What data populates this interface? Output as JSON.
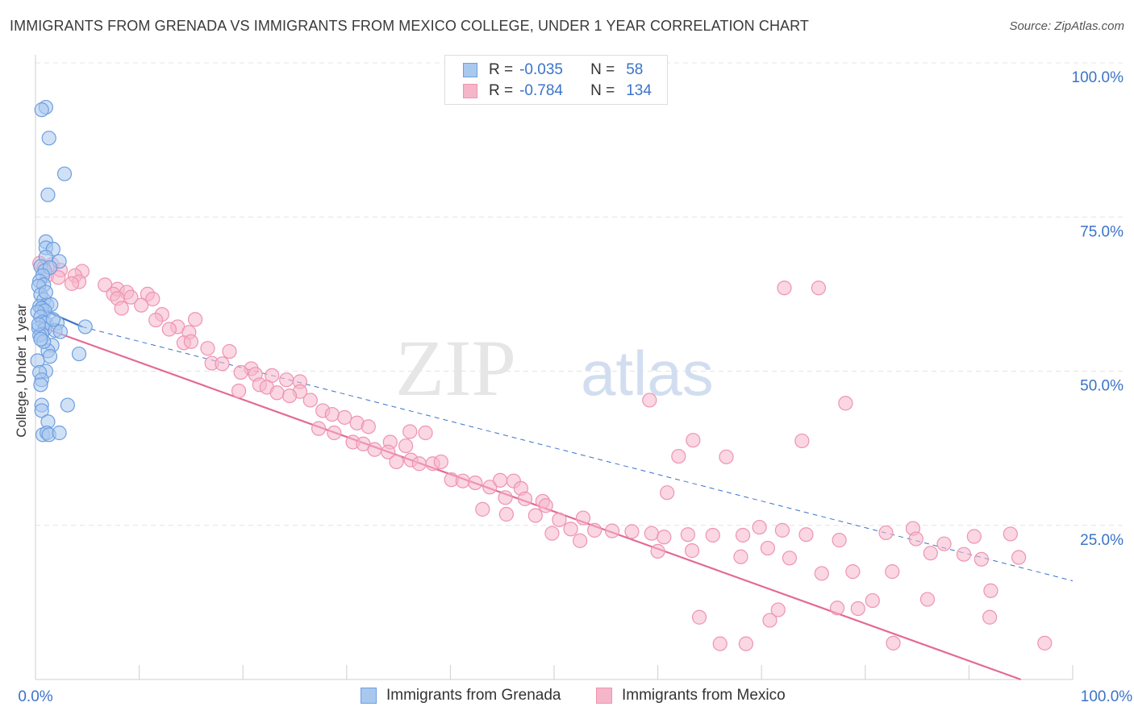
{
  "chart_data": {
    "type": "scatter",
    "title": "IMMIGRANTS FROM GRENADA VS IMMIGRANTS FROM MEXICO COLLEGE, UNDER 1 YEAR CORRELATION CHART",
    "source": "Source: ZipAtlas.com",
    "xlabel": "",
    "ylabel": "College, Under 1 year",
    "xlim": [
      0,
      100
    ],
    "ylim": [
      0,
      100
    ],
    "x_tick_labels": [
      "0.0%",
      "100.0%"
    ],
    "y_tick_values": [
      25,
      50,
      75,
      100
    ],
    "y_tick_labels": [
      "25.0%",
      "50.0%",
      "75.0%",
      "100.0%"
    ],
    "watermark": {
      "zip": "ZIP",
      "atlas": "atlas"
    },
    "legend": {
      "rows": [
        {
          "r_label": "R =",
          "r_value": "-0.035",
          "n_label": "N =",
          "n_value": "58"
        },
        {
          "r_label": "R =",
          "r_value": "-0.784",
          "n_label": "N =",
          "n_value": "134"
        }
      ]
    },
    "colors": {
      "grenada_fill": "#a9c8ee",
      "grenada_stroke": "#6d9ee0",
      "grenada_line": "#3b73c9",
      "mexico_fill": "#f5b6ca",
      "mexico_stroke": "#ee93b1",
      "mexico_line": "#e36a95",
      "tick_label": "#3b73c9"
    },
    "series": [
      {
        "name": "Immigrants from Grenada",
        "trend": {
          "x": [
            0,
            4.5
          ],
          "y": [
            60.5,
            57.2
          ]
        },
        "trend_dashed": {
          "x": [
            4.5,
            100
          ],
          "y": [
            57.2,
            16
          ]
        },
        "points": [
          [
            1.0,
            92.8
          ],
          [
            0.6,
            92.4
          ],
          [
            1.3,
            87.8
          ],
          [
            2.8,
            82.0
          ],
          [
            1.2,
            78.6
          ],
          [
            1.0,
            71.0
          ],
          [
            1.0,
            70.0
          ],
          [
            1.7,
            69.8
          ],
          [
            1.0,
            68.5
          ],
          [
            2.3,
            67.8
          ],
          [
            0.5,
            67.0
          ],
          [
            0.9,
            66.3
          ],
          [
            1.4,
            66.8
          ],
          [
            0.7,
            65.5
          ],
          [
            0.4,
            64.6
          ],
          [
            0.8,
            64.0
          ],
          [
            0.3,
            63.8
          ],
          [
            0.5,
            62.4
          ],
          [
            0.8,
            61.6
          ],
          [
            1.1,
            60.8
          ],
          [
            0.4,
            60.5
          ],
          [
            1.5,
            60.8
          ],
          [
            0.6,
            60.2
          ],
          [
            0.9,
            59.8
          ],
          [
            0.2,
            59.6
          ],
          [
            0.5,
            58.8
          ],
          [
            0.7,
            58.0
          ],
          [
            1.0,
            57.8
          ],
          [
            2.1,
            57.8
          ],
          [
            4.8,
            57.2
          ],
          [
            0.3,
            57.0
          ],
          [
            0.9,
            56.8
          ],
          [
            1.9,
            56.6
          ],
          [
            2.4,
            56.4
          ],
          [
            0.6,
            56.0
          ],
          [
            0.4,
            55.8
          ],
          [
            1.6,
            54.2
          ],
          [
            1.2,
            53.3
          ],
          [
            4.2,
            52.8
          ],
          [
            1.4,
            52.4
          ],
          [
            0.2,
            51.7
          ],
          [
            1.0,
            50.0
          ],
          [
            0.4,
            49.8
          ],
          [
            0.6,
            48.6
          ],
          [
            0.5,
            47.8
          ],
          [
            0.6,
            44.5
          ],
          [
            3.1,
            44.5
          ],
          [
            0.6,
            43.6
          ],
          [
            1.2,
            41.8
          ],
          [
            0.7,
            39.7
          ],
          [
            1.1,
            40.0
          ],
          [
            1.3,
            39.7
          ],
          [
            2.3,
            40.0
          ],
          [
            0.3,
            57.6
          ],
          [
            0.8,
            54.8
          ],
          [
            1.0,
            62.8
          ],
          [
            1.7,
            58.4
          ],
          [
            0.5,
            55.2
          ]
        ]
      },
      {
        "name": "Immigrants from Mexico",
        "trend": {
          "x": [
            0,
            95
          ],
          "y": [
            57.5,
            0
          ]
        },
        "points": [
          [
            0.4,
            67.5
          ],
          [
            1.6,
            67.3
          ],
          [
            0.8,
            66.8
          ],
          [
            2.4,
            66.4
          ],
          [
            4.5,
            66.2
          ],
          [
            1.1,
            65.5
          ],
          [
            3.8,
            65.5
          ],
          [
            2.2,
            65.2
          ],
          [
            4.2,
            64.5
          ],
          [
            3.5,
            64.2
          ],
          [
            6.7,
            64.0
          ],
          [
            7.9,
            63.3
          ],
          [
            8.8,
            62.8
          ],
          [
            7.5,
            62.5
          ],
          [
            9.2,
            62.0
          ],
          [
            10.8,
            62.5
          ],
          [
            7.9,
            61.8
          ],
          [
            11.3,
            61.7
          ],
          [
            10.2,
            60.7
          ],
          [
            8.3,
            60.2
          ],
          [
            12.2,
            59.2
          ],
          [
            11.6,
            58.3
          ],
          [
            15.4,
            58.4
          ],
          [
            13.7,
            57.2
          ],
          [
            12.9,
            56.8
          ],
          [
            14.8,
            56.3
          ],
          [
            14.3,
            54.6
          ],
          [
            15.0,
            54.8
          ],
          [
            16.6,
            53.7
          ],
          [
            18.7,
            53.2
          ],
          [
            17.0,
            51.3
          ],
          [
            18.0,
            51.2
          ],
          [
            20.8,
            50.4
          ],
          [
            19.8,
            49.8
          ],
          [
            21.2,
            49.5
          ],
          [
            22.8,
            49.3
          ],
          [
            24.2,
            48.6
          ],
          [
            25.5,
            48.3
          ],
          [
            21.6,
            47.8
          ],
          [
            22.3,
            47.4
          ],
          [
            19.6,
            46.8
          ],
          [
            25.5,
            46.7
          ],
          [
            23.3,
            46.5
          ],
          [
            24.5,
            46.0
          ],
          [
            26.5,
            45.3
          ],
          [
            27.7,
            43.6
          ],
          [
            28.6,
            43.0
          ],
          [
            29.8,
            42.5
          ],
          [
            31.0,
            41.6
          ],
          [
            32.1,
            41.0
          ],
          [
            27.3,
            40.7
          ],
          [
            28.8,
            40.0
          ],
          [
            36.1,
            40.2
          ],
          [
            37.6,
            40.0
          ],
          [
            30.6,
            38.5
          ],
          [
            31.6,
            38.2
          ],
          [
            34.2,
            38.5
          ],
          [
            32.7,
            37.3
          ],
          [
            34.0,
            36.9
          ],
          [
            35.7,
            37.9
          ],
          [
            34.8,
            35.3
          ],
          [
            36.2,
            35.6
          ],
          [
            37.0,
            35.0
          ],
          [
            38.3,
            35.0
          ],
          [
            39.1,
            35.3
          ],
          [
            40.1,
            32.4
          ],
          [
            41.2,
            32.2
          ],
          [
            42.4,
            31.9
          ],
          [
            43.8,
            31.2
          ],
          [
            44.8,
            32.3
          ],
          [
            46.1,
            32.2
          ],
          [
            46.8,
            31.0
          ],
          [
            45.3,
            29.5
          ],
          [
            47.2,
            29.3
          ],
          [
            48.9,
            28.9
          ],
          [
            49.2,
            28.2
          ],
          [
            43.1,
            27.6
          ],
          [
            45.4,
            26.8
          ],
          [
            48.2,
            26.6
          ],
          [
            52.8,
            26.2
          ],
          [
            50.5,
            25.9
          ],
          [
            51.6,
            24.4
          ],
          [
            53.9,
            24.2
          ],
          [
            55.6,
            24.1
          ],
          [
            57.5,
            24.0
          ],
          [
            59.4,
            23.7
          ],
          [
            49.8,
            23.7
          ],
          [
            52.5,
            22.5
          ],
          [
            60.6,
            23.1
          ],
          [
            62.9,
            23.5
          ],
          [
            65.3,
            23.4
          ],
          [
            68.2,
            23.4
          ],
          [
            69.8,
            24.7
          ],
          [
            72.0,
            24.2
          ],
          [
            74.3,
            23.5
          ],
          [
            77.5,
            22.6
          ],
          [
            82.0,
            23.8
          ],
          [
            84.6,
            24.5
          ],
          [
            84.9,
            22.8
          ],
          [
            87.6,
            22.0
          ],
          [
            90.5,
            23.2
          ],
          [
            94.0,
            23.6
          ],
          [
            60.0,
            20.8
          ],
          [
            63.3,
            20.9
          ],
          [
            68.0,
            19.9
          ],
          [
            72.7,
            19.7
          ],
          [
            75.8,
            17.2
          ],
          [
            78.8,
            17.5
          ],
          [
            82.6,
            17.5
          ],
          [
            86.3,
            20.5
          ],
          [
            89.5,
            20.3
          ],
          [
            91.2,
            19.5
          ],
          [
            94.8,
            19.8
          ],
          [
            92.1,
            14.4
          ],
          [
            86.0,
            13.0
          ],
          [
            80.7,
            12.8
          ],
          [
            71.6,
            11.3
          ],
          [
            77.3,
            11.6
          ],
          [
            70.8,
            9.6
          ],
          [
            79.3,
            11.5
          ],
          [
            64.0,
            10.1
          ],
          [
            66.0,
            5.8
          ],
          [
            68.5,
            5.8
          ],
          [
            92.0,
            10.1
          ],
          [
            82.7,
            5.9
          ],
          [
            97.3,
            5.9
          ],
          [
            59.2,
            45.3
          ],
          [
            78.1,
            44.8
          ],
          [
            72.2,
            63.5
          ],
          [
            75.5,
            63.5
          ],
          [
            73.9,
            38.7
          ],
          [
            66.6,
            36.1
          ],
          [
            62.0,
            36.2
          ],
          [
            70.6,
            21.3
          ],
          [
            63.4,
            38.8
          ],
          [
            60.9,
            30.3
          ]
        ]
      }
    ]
  },
  "bottom_legend": {
    "grenada_label": "Immigrants from Grenada",
    "mexico_label": "Immigrants from Mexico"
  }
}
